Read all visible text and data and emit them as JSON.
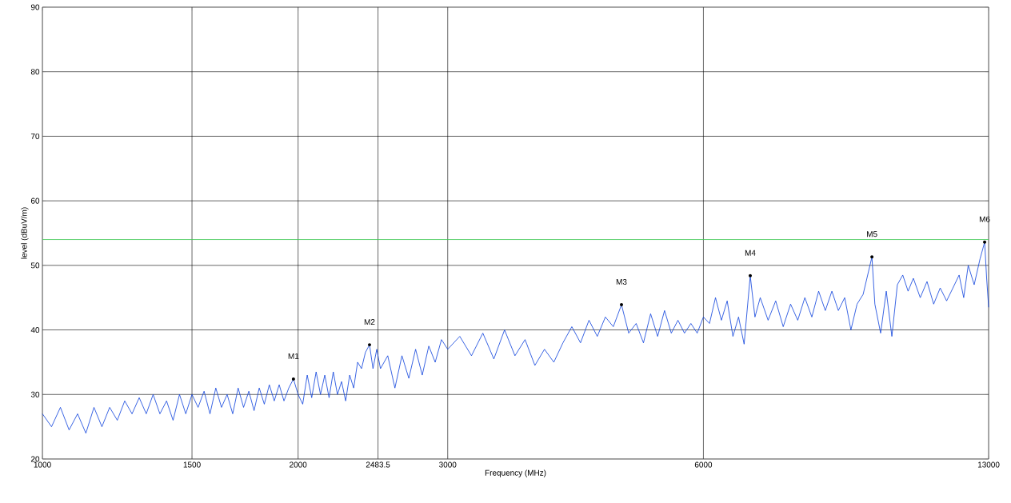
{
  "chart_data": {
    "type": "line",
    "xlabel": "Frequency (MHz)",
    "ylabel": "level (dBuV/m)",
    "log": "x",
    "grid": true,
    "marker": "none",
    "line_style": "solid",
    "xlim": [
      1000,
      13000
    ],
    "ylim": [
      20,
      90
    ],
    "xticks": [
      1000,
      1500,
      2000,
      2483.5,
      3000,
      6000,
      13000
    ],
    "yticks": [
      20,
      30,
      40,
      50,
      60,
      70,
      80,
      90
    ],
    "ref_lines": [
      {
        "axis": "y",
        "value": 54,
        "color": "#3cc850"
      }
    ],
    "annotations": [
      {
        "text": "M1",
        "x": 1975,
        "y": 32.4
      },
      {
        "text": "M2",
        "x": 2427,
        "y": 37.7
      },
      {
        "text": "M3",
        "x": 4805,
        "y": 43.9
      },
      {
        "text": "M4",
        "x": 6813,
        "y": 48.4
      },
      {
        "text": "M5",
        "x": 9474,
        "y": 51.3
      },
      {
        "text": "M6",
        "x": 12860,
        "y": 53.6
      }
    ],
    "series": [
      {
        "color": "#0a3fdc",
        "x": [
          1000,
          1025,
          1050,
          1075,
          1100,
          1125,
          1150,
          1175,
          1200,
          1225,
          1250,
          1275,
          1300,
          1325,
          1350,
          1375,
          1400,
          1425,
          1450,
          1475,
          1500,
          1525,
          1550,
          1575,
          1600,
          1625,
          1650,
          1675,
          1700,
          1725,
          1750,
          1775,
          1800,
          1825,
          1850,
          1875,
          1900,
          1925,
          1950,
          1975,
          2000,
          2025,
          2050,
          2075,
          2100,
          2125,
          2150,
          2175,
          2200,
          2225,
          2250,
          2275,
          2300,
          2325,
          2350,
          2375,
          2400,
          2427,
          2450,
          2475,
          2500,
          2550,
          2600,
          2650,
          2700,
          2750,
          2800,
          2850,
          2900,
          2950,
          3000,
          3100,
          3200,
          3300,
          3400,
          3500,
          3600,
          3700,
          3800,
          3900,
          4000,
          4100,
          4200,
          4300,
          4400,
          4500,
          4600,
          4700,
          4805,
          4900,
          5000,
          5100,
          5200,
          5300,
          5400,
          5500,
          5600,
          5700,
          5800,
          5900,
          6000,
          6100,
          6200,
          6300,
          6400,
          6500,
          6600,
          6700,
          6813,
          6900,
          7000,
          7150,
          7300,
          7450,
          7600,
          7750,
          7900,
          8050,
          8200,
          8350,
          8500,
          8650,
          8800,
          8950,
          9100,
          9250,
          9474,
          9550,
          9700,
          9850,
          10000,
          10150,
          10300,
          10450,
          10600,
          10800,
          11000,
          11200,
          11400,
          11600,
          11800,
          12000,
          12150,
          12300,
          12500,
          12700,
          12860,
          12930,
          13000
        ],
        "values": [
          27,
          25,
          28,
          24.5,
          27,
          24,
          28,
          25,
          28,
          26,
          29,
          27,
          29.5,
          27,
          30,
          27,
          29,
          26,
          30,
          27,
          30,
          28,
          30.5,
          27,
          31,
          28,
          30,
          27,
          31,
          28,
          30.5,
          27.5,
          31,
          28.5,
          31.5,
          29,
          31.5,
          29,
          31,
          32.4,
          30,
          28.5,
          33,
          29.5,
          33.5,
          30,
          33,
          29.5,
          33.5,
          30,
          32,
          29,
          33,
          31,
          35,
          34,
          36.5,
          37.7,
          34,
          37,
          34,
          36,
          31,
          36,
          32.5,
          37,
          33,
          37.5,
          35,
          38.5,
          37,
          39,
          36,
          39.5,
          35.5,
          40,
          36,
          38.5,
          34.5,
          37,
          35,
          38,
          40.5,
          38,
          41.5,
          39,
          42,
          40.5,
          43.9,
          39.5,
          41,
          38,
          42.5,
          39,
          43,
          39.5,
          41.5,
          39.5,
          41,
          39.5,
          42,
          41,
          45,
          41.5,
          44.5,
          39,
          42,
          37.8,
          48.4,
          42,
          45,
          41.5,
          44.5,
          40.5,
          44,
          41.5,
          45,
          42,
          46,
          43,
          46,
          43,
          45,
          40,
          44,
          45.5,
          51.3,
          44,
          39.5,
          46,
          39,
          47,
          48.5,
          46,
          48,
          45,
          47.5,
          44,
          46.5,
          44.5,
          46.5,
          48.5,
          45,
          50,
          47,
          51,
          53.6,
          48,
          43.5
        ]
      }
    ]
  }
}
